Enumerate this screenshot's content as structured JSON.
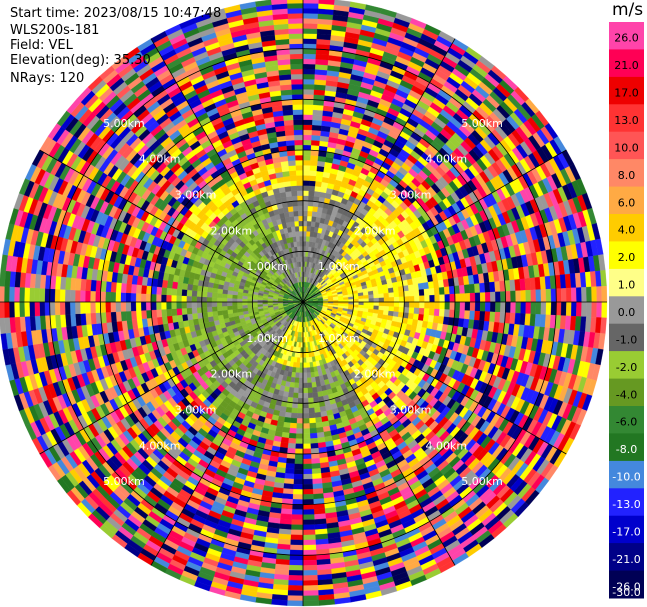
{
  "header": {
    "start_time": "Start time: 2023/08/15 10:47:48",
    "site": "WLS200s-181",
    "field": "Field: VEL",
    "elevation": "Elevation(deg): 35.30",
    "nrays": "NRays: 120"
  },
  "chart_data": {
    "type": "heatmap",
    "subtype": "radar-ppi",
    "nrays": 120,
    "max_range_km": 6.0,
    "range_rings_km": [
      1.0,
      2.0,
      3.0,
      4.0,
      5.0
    ],
    "ring_labels": [
      "1.00km",
      "2.00km",
      "3.00km",
      "4.00km",
      "5.00km"
    ],
    "radial_spokes_deg": [
      0,
      30,
      60,
      90,
      120,
      150,
      180,
      210,
      240,
      270,
      300,
      330
    ],
    "velocity_units": "m/s",
    "colorbar": {
      "ticks": [
        "26.0",
        "21.0",
        "17.0",
        "13.0",
        "10.0",
        "8.0",
        "6.0",
        "4.0",
        "2.0",
        "1.0",
        "0.0",
        "-1.0",
        "-2.0",
        "-4.0",
        "-6.0",
        "-8.0",
        "-10.0",
        "-13.0",
        "-17.0",
        "-21.0",
        "-26.0",
        "-30.0"
      ],
      "colors": [
        "#ff44aa",
        "#ff0055",
        "#ee0000",
        "#ff3333",
        "#ff5555",
        "#ff8866",
        "#ffaa44",
        "#ffcc00",
        "#ffff00",
        "#ffff88",
        "#999999",
        "#666666",
        "#99cc33",
        "#669922",
        "#338833",
        "#227722",
        "#4488dd",
        "#2222ff",
        "#0000cc",
        "#000088",
        "#000055"
      ]
    },
    "zones": [
      {
        "r0_km": 0.0,
        "r1_km": 0.45,
        "pattern": "green-core"
      },
      {
        "r0_km": 0.45,
        "r1_km": 1.3,
        "pattern": "gray-yellow-split"
      },
      {
        "r0_km": 1.3,
        "r1_km": 2.3,
        "pattern": "green-gray-yellow"
      },
      {
        "r0_km": 2.3,
        "r1_km": 2.8,
        "pattern": "yellow-green-mixed"
      },
      {
        "r0_km": 2.8,
        "r1_km": 6.0,
        "pattern": "noise"
      }
    ]
  }
}
